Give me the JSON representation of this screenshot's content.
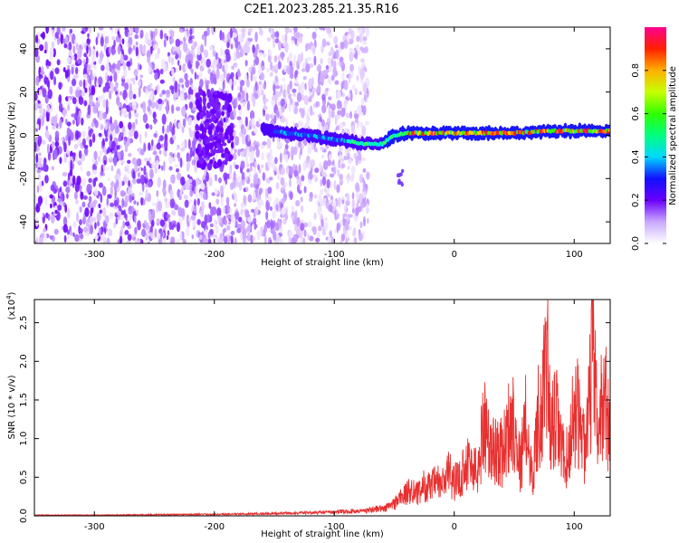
{
  "title": "C2E1.2023.285.21.35.R16",
  "chart_data": [
    {
      "type": "heatmap",
      "xlabel": "Height of straight line (km)",
      "ylabel": "Frequency (Hz)",
      "xlim": [
        -350,
        130
      ],
      "ylim": [
        -50,
        50
      ],
      "xticks": [
        -300,
        -200,
        -100,
        0,
        100
      ],
      "yticks": [
        -40,
        -20,
        0,
        20,
        40
      ],
      "noise_region_x": [
        -350,
        -72
      ],
      "signal_line": [
        {
          "x": -160,
          "y": 3
        },
        {
          "x": -140,
          "y": 1
        },
        {
          "x": -120,
          "y": 0
        },
        {
          "x": -100,
          "y": -2
        },
        {
          "x": -85,
          "y": -3
        },
        {
          "x": -75,
          "y": -4
        },
        {
          "x": -60,
          "y": -4
        },
        {
          "x": -50,
          "y": 0
        },
        {
          "x": -40,
          "y": 1
        },
        {
          "x": -20,
          "y": 1
        },
        {
          "x": 0,
          "y": 1
        },
        {
          "x": 20,
          "y": 1
        },
        {
          "x": 50,
          "y": 1
        },
        {
          "x": 80,
          "y": 2
        },
        {
          "x": 100,
          "y": 2
        },
        {
          "x": 130,
          "y": 2
        }
      ],
      "colorbar": {
        "label": "Normalized spectral amplitude",
        "ticks": [
          "0.0",
          "0.2",
          "0.4",
          "0.6",
          "0.8"
        ],
        "range": [
          0,
          1
        ]
      }
    },
    {
      "type": "line",
      "xlabel": "Height of straight line (km)",
      "ylabel": "SNR (10 * v/v)",
      "multiplier": "(x10",
      "multiplier_exp": "4",
      "multiplier_close": ")",
      "xlim": [
        -350,
        130
      ],
      "ylim": [
        0,
        2.8
      ],
      "xticks": [
        -300,
        -200,
        -100,
        0,
        100
      ],
      "yticks": [
        "0.0",
        "0.5",
        "1.0",
        "1.5",
        "2.0",
        "2.5"
      ],
      "color": "#e83030",
      "series": [
        {
          "x": [
            -350,
            -300,
            -250,
            -200,
            -150,
            -120,
            -100,
            -80,
            -70,
            -60,
            -50,
            -45,
            -40,
            -35,
            -30,
            -25,
            -20,
            -15,
            -10,
            -5,
            0,
            5,
            10,
            15,
            20,
            25,
            30,
            35,
            40,
            45,
            50,
            55,
            60,
            65,
            70,
            75,
            78,
            80,
            85,
            90,
            95,
            100,
            105,
            110,
            115,
            120,
            125,
            130
          ],
          "values": [
            0.01,
            0.01,
            0.015,
            0.02,
            0.03,
            0.04,
            0.05,
            0.06,
            0.08,
            0.1,
            0.2,
            0.3,
            0.35,
            0.45,
            0.35,
            0.5,
            0.45,
            0.55,
            0.5,
            0.7,
            0.55,
            0.6,
            0.9,
            0.8,
            0.7,
            1.65,
            1.0,
            1.1,
            1.0,
            1.4,
            1.6,
            0.8,
            1.55,
            0.6,
            1.6,
            2.0,
            2.8,
            1.3,
            1.6,
            1.0,
            0.9,
            1.8,
            1.5,
            1.0,
            2.6,
            1.3,
            2.1,
            1.2
          ]
        }
      ]
    }
  ]
}
